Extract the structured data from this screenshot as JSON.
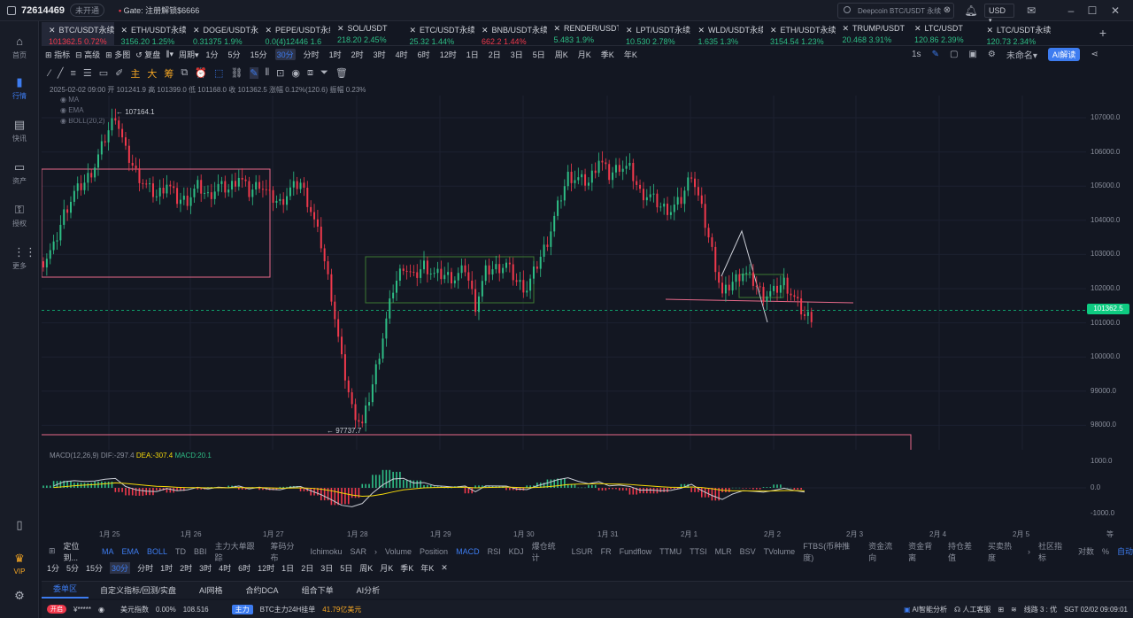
{
  "topbar": {
    "account_id": "72614469",
    "account_badge": "未开通",
    "announcement_prefix": "Gate:",
    "announcement_text": "注册解锁$6666",
    "search_placeholder": "Deepcoin BTC/USDT 永续",
    "currency": "USD"
  },
  "sidebar": {
    "items": [
      {
        "label": "首页",
        "icon": "home-icon"
      },
      {
        "label": "行情",
        "icon": "chart-bars-icon",
        "active": true
      },
      {
        "label": "快讯",
        "icon": "news-icon"
      },
      {
        "label": "资产",
        "icon": "wallet-icon"
      },
      {
        "label": "授权",
        "icon": "key-icon"
      },
      {
        "label": "更多",
        "icon": "more-icon"
      }
    ],
    "vip": "VIP"
  },
  "tabs": [
    {
      "name": "BTC/USDT永续",
      "price": "101362.5",
      "change": "0.72%",
      "dir": "dn",
      "active": true
    },
    {
      "name": "ETH/USDT永续",
      "price": "3156.20",
      "change": "1.25%",
      "dir": "up"
    },
    {
      "name": "DOGE/USDT永续",
      "price": "0.31375",
      "change": "1.9%",
      "dir": "up"
    },
    {
      "name": "PEPE/USDT永续",
      "price": "0.0(4)12446",
      "change": "1.6",
      "dir": "up"
    },
    {
      "name": "SOL/USDT",
      "price": "218.20",
      "change": "2.45%",
      "dir": "up"
    },
    {
      "name": "ETC/USDT永续",
      "price": "25.32",
      "change": "1.44%",
      "dir": "up"
    },
    {
      "name": "BNB/USDT永续",
      "price": "662.2",
      "change": "1.44%",
      "dir": "dn"
    },
    {
      "name": "RENDER/USDT",
      "price": "5.483",
      "change": "1.9%",
      "dir": "up"
    },
    {
      "name": "LPT/USDT永续",
      "price": "10.530",
      "change": "2.78%",
      "dir": "up"
    },
    {
      "name": "WLD/USDT永续",
      "price": "1.635",
      "change": "1.3%",
      "dir": "up"
    },
    {
      "name": "ETH/USDT永续",
      "price": "3154.54",
      "change": "1.23%",
      "dir": "up"
    },
    {
      "name": "TRUMP/USDT",
      "price": "20.468",
      "change": "3.91%",
      "dir": "up"
    },
    {
      "name": "LTC/USDT",
      "price": "120.86",
      "change": "2.39%",
      "dir": "up"
    },
    {
      "name": "LTC/USDT永续",
      "price": "120.73",
      "change": "2.34%",
      "dir": "up"
    }
  ],
  "toolbar": {
    "indicators": "指标",
    "advanced": "高级",
    "multi": "多图",
    "replay": "复盘",
    "period": "周期",
    "intervals": [
      "1分",
      "5分",
      "15分",
      "30分",
      "分时",
      "1时",
      "2时",
      "3时",
      "4时",
      "6时",
      "12时",
      "1日",
      "2日",
      "3日",
      "5日",
      "周K",
      "月K",
      "季K",
      "年K"
    ],
    "selected_interval": "30分",
    "right_interval": "1s",
    "layout_name": "未命名",
    "ai_label": "AI解读"
  },
  "drawing_tools": {
    "main": "主",
    "big": "大",
    "chips": "筹"
  },
  "ohlc": "2025-02-02 09:00  开 101241.9  高 101399.0  低 101168.0  收 101362.5  涨幅 0.12%(120.6)  振幅 0.23%",
  "overlays": [
    "MA",
    "EMA",
    "BOLL(20,2)"
  ],
  "chart_data": {
    "type": "candlestick",
    "last_price": "101362.5",
    "high_label": "107164.1",
    "low_label": "97737.7",
    "y_ticks": [
      "107000.0",
      "106000.0",
      "105000.0",
      "104000.0",
      "103000.0",
      "102000.0",
      "101000.0",
      "100000.0",
      "99000.0",
      "98000.0"
    ],
    "x_ticks": [
      "1月 25",
      "1月 26",
      "1月 27",
      "1月 28",
      "1月 29",
      "1月 30",
      "1月 31",
      "2月 1",
      "2月 2",
      "2月 3",
      "2月 4",
      "2月 5"
    ],
    "x_unit": "等",
    "close_series": [
      102800,
      103200,
      104200,
      104800,
      105100,
      105600,
      106400,
      107100,
      106000,
      105400,
      105000,
      104700,
      105100,
      104600,
      104600,
      105000,
      104700,
      105000,
      104900,
      105300,
      104800,
      105100,
      104700,
      104500,
      104900,
      105100,
      104300,
      103300,
      101800,
      99900,
      98500,
      98000,
      99200,
      100600,
      102000,
      102700,
      102300,
      102700,
      102400,
      102400,
      102300,
      102600,
      101500,
      102500,
      102600,
      102700,
      102200,
      102000,
      102700,
      103400,
      104400,
      105300,
      105200,
      105100,
      105800,
      105300,
      105600,
      105500,
      104800,
      104700,
      104400,
      104300,
      104600,
      105400,
      104300,
      103100,
      101800,
      102200,
      102500,
      102200,
      101800,
      101900,
      102200,
      101700,
      101200
    ],
    "macd_label": "MACD(12,26,9)",
    "macd_dif": "DIF:-297.4",
    "macd_dea": "DEA:-307.4",
    "macd_val": "MACD:20.1",
    "macd_ticks": [
      "1000.0",
      "0.0",
      "-1000.0"
    ]
  },
  "indicator_bar": {
    "overlay_prefix": "定位到...",
    "main": [
      "MA",
      "EMA",
      "BOLL",
      "TD",
      "BBI",
      "主力大单跟踪",
      "筹码分布",
      "Ichimoku",
      "SAR"
    ],
    "sub": [
      "Volume",
      "Position",
      "MACD",
      "RSI",
      "KDJ",
      "爆仓统计",
      "LSUR",
      "FR",
      "Fundflow",
      "TTMU",
      "TTSI",
      "MLR",
      "BSV",
      "TVolume",
      "FTBS(币种推度)",
      "资金流向",
      "资金背离",
      "持仓差值",
      "买卖热度"
    ],
    "right": [
      "社区指标",
      "对数",
      "%",
      "自动"
    ]
  },
  "bottom_tabs": [
    "委单区",
    "自定义指标/回测/实盘",
    "AI网格",
    "合约DCA",
    "组合下单",
    "AI分析"
  ],
  "status": {
    "live": "开启",
    "balance": "¥*****",
    "index_label": "美元指数",
    "index_change": "0.00%",
    "index_value": "108.516",
    "main_flow_tag": "主力",
    "main_flow_text": "BTC主力24H挂单",
    "main_flow_amount": "41.79亿美元",
    "ai_monitor": "AI智能分析",
    "service": "人工客服",
    "line": "线路 3 : 优",
    "time": "SGT 02/02 09:09:01"
  }
}
